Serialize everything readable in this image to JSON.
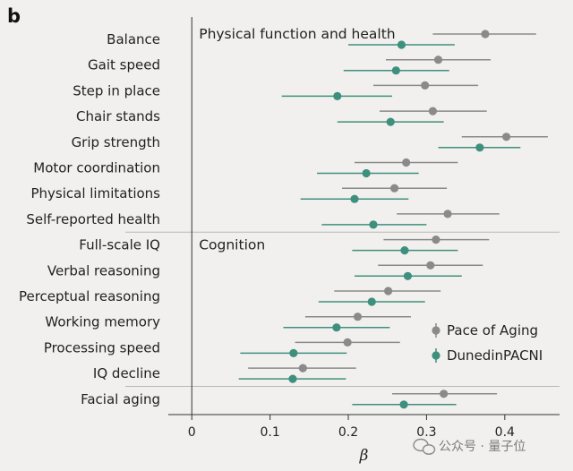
{
  "chart_data": {
    "type": "forest",
    "panel_label": "b",
    "xlabel": "β",
    "xlim": [
      -0.03,
      0.47
    ],
    "xticks": [
      0,
      0.1,
      0.2,
      0.3,
      0.4
    ],
    "xtick_labels": [
      "0",
      "0.1",
      "0.2",
      "0.3",
      "0.4"
    ],
    "grid": false,
    "legend_position": "bottom-right",
    "sections": [
      {
        "label": "Physical function and health",
        "start_index": 0
      },
      {
        "label": "Cognition",
        "start_index": 8
      },
      {
        "label": "",
        "start_index": 14
      }
    ],
    "categories": [
      "Balance",
      "Gait speed",
      "Step in place",
      "Chair stands",
      "Grip strength",
      "Motor coordination",
      "Physical limitations",
      "Self-reported health",
      "Full-scale IQ",
      "Verbal reasoning",
      "Perceptual reasoning",
      "Working memory",
      "Processing speed",
      "IQ decline",
      "Facial aging"
    ],
    "series": [
      {
        "name": "Pace of Aging",
        "color": "#8a8a8a",
        "estimates": [
          0.375,
          0.315,
          0.298,
          0.308,
          0.402,
          0.274,
          0.259,
          0.327,
          0.312,
          0.305,
          0.251,
          0.212,
          0.199,
          0.142,
          0.322
        ],
        "ci_low": [
          0.308,
          0.248,
          0.232,
          0.24,
          0.345,
          0.208,
          0.192,
          0.262,
          0.245,
          0.238,
          0.182,
          0.145,
          0.132,
          0.072,
          0.256
        ],
        "ci_high": [
          0.44,
          0.382,
          0.366,
          0.377,
          0.455,
          0.34,
          0.326,
          0.393,
          0.38,
          0.372,
          0.318,
          0.28,
          0.266,
          0.21,
          0.39
        ]
      },
      {
        "name": "DunedinPACNI",
        "color": "#3f8f7e",
        "estimates": [
          0.268,
          0.261,
          0.186,
          0.254,
          0.368,
          0.223,
          0.208,
          0.232,
          0.272,
          0.276,
          0.23,
          0.185,
          0.13,
          0.129,
          0.271
        ],
        "ci_low": [
          0.2,
          0.194,
          0.115,
          0.186,
          0.315,
          0.16,
          0.139,
          0.166,
          0.205,
          0.208,
          0.162,
          0.117,
          0.062,
          0.06,
          0.205
        ],
        "ci_high": [
          0.336,
          0.329,
          0.256,
          0.322,
          0.42,
          0.29,
          0.277,
          0.3,
          0.34,
          0.345,
          0.298,
          0.253,
          0.198,
          0.197,
          0.338
        ]
      }
    ]
  },
  "watermark": "公众号 · 量子位"
}
